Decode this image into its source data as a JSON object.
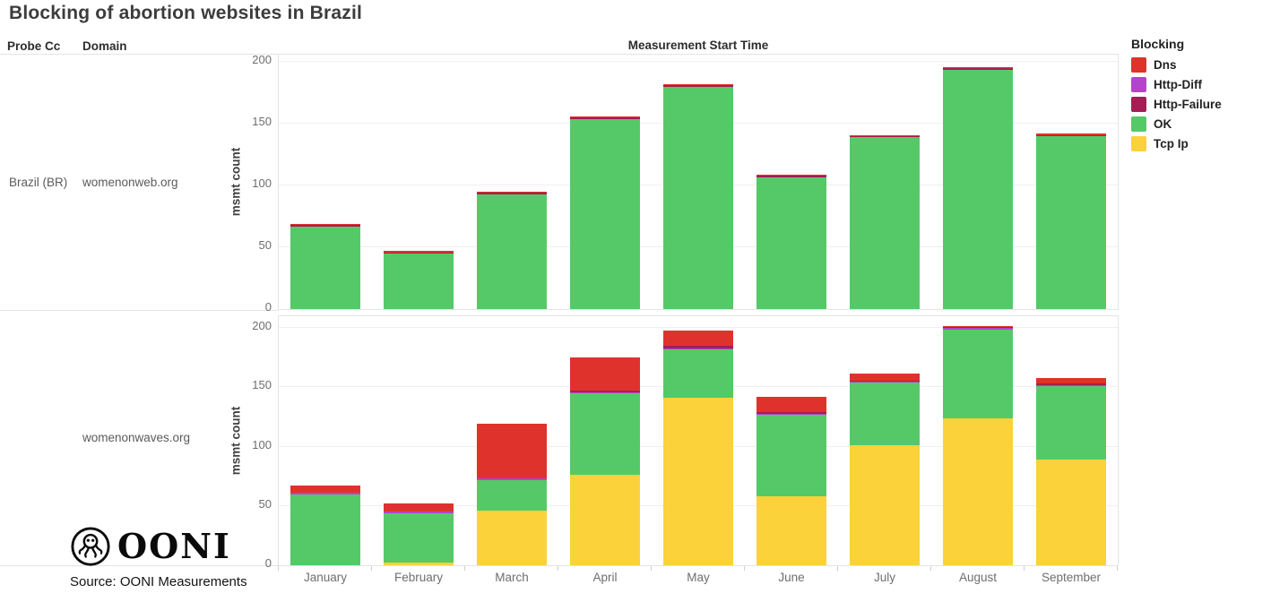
{
  "title": "Blocking of abortion websites in Brazil",
  "table": {
    "probe_cc_header": "Probe Cc",
    "domain_header": "Domain",
    "probe_cc": "Brazil (BR)"
  },
  "x_axis_title": "Measurement Start Time",
  "legend": {
    "title": "Blocking",
    "items": [
      {
        "label": "Dns",
        "color": "#e0322c"
      },
      {
        "label": "Http-Diff",
        "color": "#b544cd"
      },
      {
        "label": "Http-Failure",
        "color": "#a41e55"
      },
      {
        "label": "OK",
        "color": "#55c968"
      },
      {
        "label": "Tcp Ip",
        "color": "#fcd23a"
      }
    ]
  },
  "footer": {
    "logo_text": "OONI",
    "source": "Source: OONI Measurements"
  },
  "chart_data": [
    {
      "type": "bar",
      "stacked": true,
      "row_label": "womenonweb.org",
      "ylabel": "msmt count",
      "ylim": [
        0,
        206
      ],
      "yticks": [
        0,
        50,
        100,
        150,
        200
      ],
      "grid": true,
      "legend_position": "right",
      "categories": [
        "January",
        "February",
        "March",
        "April",
        "May",
        "June",
        "July",
        "August",
        "September"
      ],
      "series": [
        {
          "name": "Tcp Ip",
          "color": "#fcd23a",
          "values": [
            0,
            0,
            0,
            0,
            0,
            0,
            0,
            0,
            0
          ]
        },
        {
          "name": "OK",
          "color": "#55c968",
          "values": [
            67,
            45,
            93,
            154,
            180,
            107,
            139,
            194,
            140
          ]
        },
        {
          "name": "Http-Diff",
          "color": "#b544cd",
          "values": [
            0,
            0,
            0,
            0,
            0,
            0,
            0,
            0,
            0
          ]
        },
        {
          "name": "Http-Failure",
          "color": "#a41e55",
          "values": [
            1,
            1,
            1,
            1,
            1,
            1,
            1,
            1,
            1
          ]
        },
        {
          "name": "Dns",
          "color": "#e0322c",
          "values": [
            1,
            1,
            1,
            1,
            1,
            1,
            1,
            1,
            1
          ]
        }
      ]
    },
    {
      "type": "bar",
      "stacked": true,
      "row_label": "womenonwaves.org",
      "ylabel": "msmt count",
      "ylim": [
        0,
        210
      ],
      "yticks": [
        0,
        50,
        100,
        150,
        200
      ],
      "grid": true,
      "legend_position": "right",
      "categories": [
        "January",
        "February",
        "March",
        "April",
        "May",
        "June",
        "July",
        "August",
        "September"
      ],
      "series": [
        {
          "name": "Tcp Ip",
          "color": "#fcd23a",
          "values": [
            0,
            2,
            46,
            76,
            141,
            58,
            101,
            124,
            89
          ]
        },
        {
          "name": "OK",
          "color": "#55c968",
          "values": [
            60,
            42,
            26,
            69,
            41,
            69,
            53,
            75,
            62
          ]
        },
        {
          "name": "Http-Diff",
          "color": "#b544cd",
          "values": [
            1,
            1,
            1,
            1,
            1,
            1,
            1,
            1,
            1
          ]
        },
        {
          "name": "Http-Failure",
          "color": "#a41e55",
          "values": [
            0,
            0,
            0,
            1,
            2,
            1,
            1,
            1,
            1
          ]
        },
        {
          "name": "Dns",
          "color": "#e0322c",
          "values": [
            6,
            7,
            46,
            28,
            13,
            13,
            6,
            1,
            5
          ]
        }
      ]
    }
  ]
}
